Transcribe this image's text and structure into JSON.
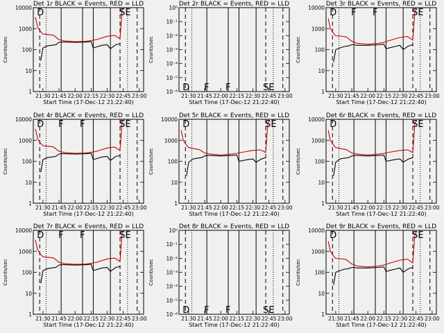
{
  "chart_data": [
    {
      "type": "line",
      "title": "Det 1r BLACK = Events, RED = LLD",
      "xlabel": "Start Time (17-Dec-12 21:22:40)",
      "ylabel": "Counts/sec",
      "log_y": true,
      "ylim": [
        1,
        10000
      ],
      "yticks": [
        "1",
        "10",
        "100",
        "1000",
        "10000"
      ],
      "xticks": [
        "21:30",
        "21:45",
        "22:00",
        "22:15",
        "22:30",
        "22:45",
        "23:00"
      ],
      "event_letters": [
        {
          "t": "21:27",
          "label": "D"
        },
        {
          "t": "22:44",
          "label": "SE"
        }
      ],
      "series": [
        {
          "color": "#cc0000",
          "x": [
            "21:23",
            "21:25",
            "21:28",
            "21:30",
            "21:35",
            "21:40",
            "21:45",
            "21:50",
            "22:00",
            "22:10",
            "22:15",
            "22:20",
            "22:30",
            "22:37",
            "22:40",
            "22:42",
            "22:44",
            "22:46"
          ],
          "y": [
            3500,
            1200,
            700,
            550,
            520,
            480,
            300,
            260,
            240,
            250,
            270,
            300,
            430,
            480,
            380,
            330,
            8000,
            9500
          ]
        },
        {
          "color": "#000000",
          "x": [
            "21:28",
            "21:30",
            "21:34",
            "21:38",
            "21:42",
            "21:45",
            "21:47",
            "21:50",
            "22:00",
            "22:10",
            "22:15",
            "22:17",
            "22:25",
            "22:30",
            "22:33",
            "22:38",
            "22:42"
          ],
          "y": [
            30,
            120,
            150,
            160,
            170,
            220,
            230,
            230,
            220,
            230,
            240,
            120,
            160,
            170,
            110,
            170,
            190
          ]
        }
      ]
    },
    {
      "type": "line",
      "title": "Det 2r BLACK = Events, RED = LLD",
      "xlabel": "Start Time (17-Dec-12 21:22:40)",
      "ylabel": "Counts/sec",
      "log_y": true,
      "ylim": [
        1e-06,
        1
      ],
      "yticks": [
        "10⁻⁶",
        "10⁻⁵",
        "10⁻⁴",
        "10⁻³",
        "10⁻²",
        "10⁻¹",
        "10⁰"
      ],
      "xticks": [
        "21:30",
        "21:45",
        "22:00",
        "22:15",
        "22:30",
        "22:45",
        "23:00"
      ],
      "event_letters": [
        {
          "t": "21:27",
          "label": "D"
        },
        {
          "t": "21:47",
          "label": "F"
        },
        {
          "t": "22:07",
          "label": "F"
        },
        {
          "t": "22:42",
          "label": "SE"
        }
      ],
      "series": []
    },
    {
      "type": "line",
      "title": "Det 3r BLACK = Events, RED = LLD",
      "xlabel": "Start Time (17-Dec-12 21:22:40)",
      "ylabel": "Counts/sec",
      "log_y": true,
      "ylim": [
        1,
        10000
      ],
      "yticks": [
        "1",
        "10",
        "100",
        "1000",
        "10000"
      ],
      "xticks": [
        "21:30",
        "21:45",
        "22:00",
        "22:15",
        "22:30",
        "22:45",
        "23:00"
      ],
      "event_letters": [
        {
          "t": "21:27",
          "label": "D"
        },
        {
          "t": "21:47",
          "label": "F"
        },
        {
          "t": "22:07",
          "label": "F"
        },
        {
          "t": "22:44",
          "label": "SE"
        }
      ],
      "series": [
        {
          "color": "#cc0000",
          "x": [
            "21:23",
            "21:25",
            "21:28",
            "21:30",
            "21:35",
            "21:40",
            "21:45",
            "21:50",
            "22:00",
            "22:10",
            "22:15",
            "22:20",
            "22:30",
            "22:37",
            "22:40",
            "22:42",
            "22:44",
            "22:46"
          ],
          "y": [
            3000,
            1000,
            600,
            460,
            440,
            400,
            250,
            200,
            180,
            200,
            220,
            270,
            380,
            420,
            330,
            280,
            7000,
            9000
          ]
        },
        {
          "color": "#000000",
          "x": [
            "21:28",
            "21:30",
            "21:34",
            "21:38",
            "21:42",
            "21:45",
            "21:47",
            "21:50",
            "22:00",
            "22:10",
            "22:15",
            "22:17",
            "22:25",
            "22:30",
            "22:33",
            "22:38",
            "22:42"
          ],
          "y": [
            25,
            100,
            120,
            140,
            150,
            170,
            170,
            160,
            160,
            170,
            180,
            110,
            140,
            160,
            100,
            150,
            170
          ]
        }
      ]
    },
    {
      "type": "line",
      "title": "Det 4r BLACK = Events, RED = LLD",
      "xlabel": "Start Time (17-Dec-12 21:22:40)",
      "ylabel": "Counts/sec",
      "log_y": true,
      "ylim": [
        1,
        10000
      ],
      "yticks": [
        "1",
        "10",
        "100",
        "1000",
        "10000"
      ],
      "xticks": [
        "21:30",
        "21:45",
        "22:00",
        "22:15",
        "22:30",
        "22:45",
        "23:00"
      ],
      "event_letters": [
        {
          "t": "21:27",
          "label": "D"
        },
        {
          "t": "21:47",
          "label": "F"
        },
        {
          "t": "22:07",
          "label": "F"
        },
        {
          "t": "22:44",
          "label": "SE"
        }
      ],
      "series": [
        {
          "color": "#cc0000",
          "x": [
            "21:23",
            "21:25",
            "21:28",
            "21:30",
            "21:35",
            "21:40",
            "21:45",
            "21:50",
            "22:00",
            "22:10",
            "22:15",
            "22:20",
            "22:30",
            "22:37",
            "22:40",
            "22:42",
            "22:44",
            "22:46"
          ],
          "y": [
            3500,
            1200,
            700,
            550,
            520,
            480,
            300,
            260,
            240,
            250,
            270,
            300,
            430,
            480,
            380,
            330,
            8000,
            9500
          ]
        },
        {
          "color": "#000000",
          "x": [
            "21:28",
            "21:30",
            "21:34",
            "21:38",
            "21:42",
            "21:45",
            "21:47",
            "21:50",
            "22:00",
            "22:10",
            "22:15",
            "22:17",
            "22:25",
            "22:30",
            "22:33",
            "22:38",
            "22:42"
          ],
          "y": [
            30,
            120,
            150,
            160,
            170,
            220,
            230,
            230,
            220,
            230,
            240,
            120,
            160,
            170,
            110,
            170,
            190
          ]
        }
      ]
    },
    {
      "type": "line",
      "title": "Det 5r BLACK = Events, RED = LLD",
      "xlabel": "Start Time (17-Dec-12 21:22:40)",
      "ylabel": "Counts/sec",
      "log_y": true,
      "ylim": [
        1,
        10000
      ],
      "yticks": [
        "1",
        "10",
        "100",
        "1000",
        "10000"
      ],
      "xticks": [
        "21:30",
        "21:45",
        "22:00",
        "22:15",
        "22:30",
        "22:45",
        "23:00"
      ],
      "event_letters": [
        {
          "t": "21:27",
          "label": "D"
        },
        {
          "t": "22:44",
          "label": "SE"
        }
      ],
      "series": [
        {
          "color": "#cc0000",
          "x": [
            "21:23",
            "21:25",
            "21:28",
            "21:30",
            "21:35",
            "21:40",
            "21:45",
            "21:50",
            "22:00",
            "22:10",
            "22:15",
            "22:20",
            "22:30",
            "22:37",
            "22:40",
            "22:42",
            "22:44",
            "22:46"
          ],
          "y": [
            3000,
            1000,
            600,
            450,
            400,
            360,
            250,
            220,
            200,
            220,
            240,
            270,
            330,
            350,
            300,
            260,
            7000,
            9000
          ]
        },
        {
          "color": "#000000",
          "x": [
            "21:28",
            "21:30",
            "21:34",
            "21:38",
            "21:42",
            "21:45",
            "21:47",
            "21:50",
            "22:00",
            "22:10",
            "22:15",
            "22:17",
            "22:25",
            "22:30",
            "22:33",
            "22:38",
            "22:42"
          ],
          "y": [
            20,
            90,
            130,
            140,
            150,
            180,
            190,
            190,
            180,
            190,
            200,
            100,
            120,
            130,
            90,
            130,
            150
          ]
        }
      ]
    },
    {
      "type": "line",
      "title": "Det 6r BLACK = Events, RED = LLD",
      "xlabel": "Start Time (17-Dec-12 21:22:40)",
      "ylabel": "Counts/sec",
      "log_y": true,
      "ylim": [
        1,
        10000
      ],
      "yticks": [
        "1",
        "10",
        "100",
        "1000",
        "10000"
      ],
      "xticks": [
        "21:30",
        "21:45",
        "22:00",
        "22:15",
        "22:30",
        "22:45",
        "23:00"
      ],
      "event_letters": [
        {
          "t": "21:27",
          "label": "D"
        },
        {
          "t": "22:44",
          "label": "SE"
        }
      ],
      "series": [
        {
          "color": "#cc0000",
          "x": [
            "21:23",
            "21:25",
            "21:28",
            "21:30",
            "21:35",
            "21:40",
            "21:45",
            "21:50",
            "22:00",
            "22:10",
            "22:15",
            "22:20",
            "22:30",
            "22:37",
            "22:40",
            "22:42",
            "22:44",
            "22:46"
          ],
          "y": [
            3000,
            1000,
            600,
            450,
            400,
            360,
            250,
            220,
            200,
            220,
            240,
            270,
            330,
            350,
            300,
            260,
            7000,
            9000
          ]
        },
        {
          "color": "#000000",
          "x": [
            "21:28",
            "21:30",
            "21:34",
            "21:38",
            "21:42",
            "21:45",
            "21:47",
            "21:50",
            "22:00",
            "22:10",
            "22:15",
            "22:17",
            "22:25",
            "22:30",
            "22:33",
            "22:38",
            "22:42"
          ],
          "y": [
            20,
            90,
            130,
            140,
            150,
            180,
            190,
            190,
            180,
            190,
            200,
            100,
            120,
            130,
            90,
            130,
            150
          ]
        }
      ]
    },
    {
      "type": "line",
      "title": "Det 7r BLACK = Events, RED = LLD",
      "xlabel": "Start Time (17-Dec-12 21:22:40)",
      "ylabel": "Counts/sec",
      "log_y": true,
      "ylim": [
        1,
        10000
      ],
      "yticks": [
        "1",
        "10",
        "100",
        "1000",
        "10000"
      ],
      "xticks": [
        "21:30",
        "21:45",
        "22:00",
        "22:15",
        "22:30",
        "22:45",
        "23:00"
      ],
      "event_letters": [
        {
          "t": "21:27",
          "label": "D"
        },
        {
          "t": "21:47",
          "label": "F"
        },
        {
          "t": "22:07",
          "label": "F"
        },
        {
          "t": "22:44",
          "label": "SE"
        }
      ],
      "series": [
        {
          "color": "#cc0000",
          "x": [
            "21:23",
            "21:25",
            "21:28",
            "21:30",
            "21:35",
            "21:40",
            "21:45",
            "21:50",
            "22:00",
            "22:10",
            "22:15",
            "22:20",
            "22:30",
            "22:37",
            "22:40",
            "22:42",
            "22:44",
            "22:46"
          ],
          "y": [
            3500,
            1200,
            700,
            550,
            520,
            480,
            300,
            260,
            240,
            250,
            270,
            300,
            430,
            480,
            380,
            330,
            8000,
            9500
          ]
        },
        {
          "color": "#000000",
          "x": [
            "21:28",
            "21:30",
            "21:34",
            "21:38",
            "21:42",
            "21:45",
            "21:47",
            "21:50",
            "22:00",
            "22:10",
            "22:15",
            "22:17",
            "22:25",
            "22:30",
            "22:33",
            "22:38",
            "22:42"
          ],
          "y": [
            30,
            120,
            150,
            160,
            170,
            220,
            230,
            230,
            220,
            230,
            240,
            120,
            160,
            170,
            110,
            170,
            190
          ]
        }
      ]
    },
    {
      "type": "line",
      "title": "Det 8r BLACK = Events, RED = LLD",
      "xlabel": "Start Time (17-Dec-12 21:22:40)",
      "ylabel": "Counts/sec",
      "log_y": true,
      "ylim": [
        1e-06,
        1
      ],
      "yticks": [
        "10⁻⁶",
        "10⁻⁵",
        "10⁻⁴",
        "10⁻³",
        "10⁻²",
        "10⁻¹",
        "10⁰"
      ],
      "xticks": [
        "21:30",
        "21:45",
        "22:00",
        "22:15",
        "22:30",
        "22:45",
        "23:00"
      ],
      "event_letters": [
        {
          "t": "21:27",
          "label": "D"
        },
        {
          "t": "21:47",
          "label": "F"
        },
        {
          "t": "22:07",
          "label": "F"
        },
        {
          "t": "22:42",
          "label": "SE"
        }
      ],
      "series": []
    },
    {
      "type": "line",
      "title": "Det 9r BLACK = Events, RED = LLD",
      "xlabel": "Start Time (17-Dec-12 21:22:40)",
      "ylabel": "Counts/sec",
      "log_y": true,
      "ylim": [
        1,
        10000
      ],
      "yticks": [
        "1",
        "10",
        "100",
        "1000",
        "10000"
      ],
      "xticks": [
        "21:30",
        "21:45",
        "22:00",
        "22:15",
        "22:30",
        "22:45",
        "23:00"
      ],
      "event_letters": [
        {
          "t": "21:27",
          "label": "D"
        },
        {
          "t": "22:44",
          "label": "SE"
        }
      ],
      "series": [
        {
          "color": "#cc0000",
          "x": [
            "21:23",
            "21:25",
            "21:28",
            "21:30",
            "21:35",
            "21:40",
            "21:45",
            "21:50",
            "22:00",
            "22:10",
            "22:15",
            "22:20",
            "22:30",
            "22:37",
            "22:40",
            "22:42",
            "22:44",
            "22:46"
          ],
          "y": [
            3000,
            1000,
            600,
            460,
            440,
            400,
            250,
            200,
            180,
            200,
            220,
            270,
            380,
            420,
            330,
            280,
            7000,
            9000
          ]
        },
        {
          "color": "#000000",
          "x": [
            "21:28",
            "21:30",
            "21:34",
            "21:38",
            "21:42",
            "21:45",
            "21:47",
            "21:50",
            "22:00",
            "22:10",
            "22:15",
            "22:17",
            "22:25",
            "22:30",
            "22:33",
            "22:38",
            "22:42"
          ],
          "y": [
            25,
            100,
            120,
            140,
            150,
            170,
            170,
            160,
            160,
            170,
            180,
            110,
            140,
            160,
            100,
            150,
            170
          ]
        }
      ]
    }
  ]
}
